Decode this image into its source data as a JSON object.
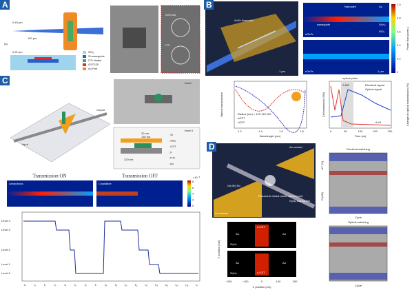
{
  "panel_a": {
    "label": "A",
    "dims": [
      "0.45 µm",
      "100 µm",
      "0.22 µm"
    ],
    "sublabel": "(a)",
    "legend": [
      "SiO₂",
      "Si waveguide",
      "ITO Heater",
      "GST225",
      "Au Pad"
    ],
    "sem_labels": [
      "GST225",
      "ITO"
    ]
  },
  "panel_b": {
    "label": "B",
    "render_labels": [
      "GeTe Nanowire",
      "1 µm"
    ],
    "sim_labels": [
      "Nanowire",
      "waveguide",
      "Au",
      "Si₃N₄",
      "SiO₂",
      "aGeTe",
      "cGeTe",
      "1 µm"
    ],
    "colorbar_title": "Power flow (norm.)",
    "colorbar_ticks": [
      "0",
      "0.2",
      "0.4",
      "0.6",
      "0.8",
      "1.0"
    ],
    "plot1": {
      "ylabel": "Optical transmission",
      "xlabel": "Wavelength (µm)",
      "xticks": [
        "1.2",
        "1.4",
        "1.6",
        "1.8"
      ],
      "legend": [
        "Radius (nm) = 120 140 160",
        "aGST",
        "cGST"
      ]
    },
    "plot2": {
      "ylabel": "Cell resistance (MΩ)",
      "y2label": "Change of optical transmission (%)",
      "xlabel": "Time (ns)",
      "xticks": [
        "0",
        "50",
        "100",
        "150",
        "200"
      ],
      "legend": [
        "Electrical signal",
        "Optical signal"
      ],
      "annotations": [
        "optical pulse",
        "~3 MΩ",
        "6 kΩ"
      ]
    }
  },
  "panel_c": {
    "label": "C",
    "device_labels": [
      "Input",
      "Output",
      "Inset I",
      "Inset II"
    ],
    "dims": [
      "30 nm",
      "130 nm",
      "220 nm"
    ],
    "legend": [
      ": Si",
      ": SiO₂",
      ": GST",
      ": F",
      ": ITO",
      ": Au"
    ],
    "titles": [
      "Transmission ON",
      "Transmission OFF"
    ],
    "states": [
      "Amorphous",
      "Crystalline"
    ],
    "colorbar_title": "×10⁻³",
    "colorbar_ticks": [
      "0",
      "2",
      "4",
      "6",
      "8"
    ],
    "levels": [
      "Level 4",
      "Level 3",
      "Level 2",
      "Level 1",
      "Level 0"
    ],
    "times": [
      "t₀",
      "t₁",
      "t₂",
      "t₃",
      "t₄",
      "t₅",
      "t₆",
      "t₇",
      "t₈",
      "t₉",
      "t₁₀",
      "t₁₁",
      "t₁₂",
      "t₁₃",
      "t₁₄",
      "t₁₅",
      "t₁₆",
      "t₁₇"
    ]
  },
  "panel_d": {
    "label": "D",
    "render_labels": [
      "Au contact",
      "Au contact",
      "Ge₂Sb₂Te₅",
      "Plasmonic mixed-mode memory cell",
      "Si₃N₄ waveguide"
    ],
    "map_labels": [
      "a-GST",
      "c-GST",
      "Au",
      "Au",
      "Au",
      "Au",
      "Si₃N₄",
      "Si₃N₄"
    ],
    "ylabel": "Y position (nm)",
    "xlabel": "X position (nm)",
    "xticks": [
      "−200",
      "−100",
      "0",
      "100",
      "200"
    ],
    "switching": {
      "titles": [
        "Electrical switching",
        "Optical switching"
      ],
      "ylabels": [
        "ΔT (%)",
        "R (kΩ)"
      ],
      "xlabel": "Cycle"
    }
  }
}
